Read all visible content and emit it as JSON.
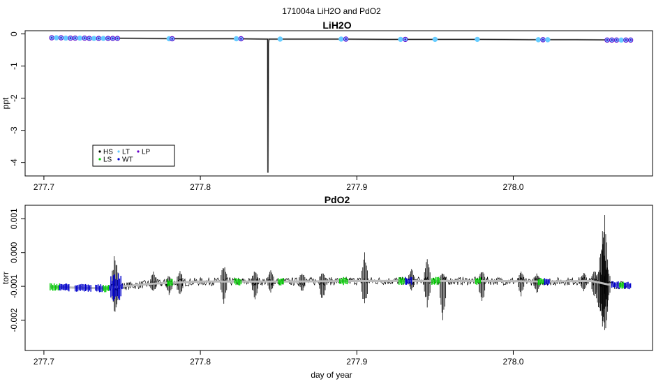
{
  "figure_title": "171004a   LiH2O and PdO2",
  "colors": {
    "HS": "#000000",
    "LS": "#00cc00",
    "LT": "#66ccff",
    "WT": "#0000cc",
    "LP": "#6600cc",
    "trace": "#000000",
    "smooth": "#bbbbbb"
  },
  "chart_data": [
    {
      "type": "line",
      "title": "LiH2O",
      "xlabel": "",
      "ylabel": "ppt",
      "xlim": [
        277.688,
        278.089
      ],
      "ylim": [
        -4.42,
        0.1
      ],
      "x_ticks": [
        "277.7",
        "277.8",
        "277.9",
        "278.0"
      ],
      "y_ticks": [
        "0",
        "-1",
        "-2",
        "-3",
        "-4"
      ],
      "series": [
        {
          "name": "trace",
          "x": [
            277.704,
            277.73,
            277.76,
            277.79,
            277.82,
            277.843,
            277.8432,
            277.8435,
            277.8438,
            277.86,
            277.89,
            277.92,
            277.95,
            277.98,
            278.01,
            278.04,
            278.075
          ],
          "y": [
            -0.12,
            -0.13,
            -0.14,
            -0.15,
            -0.15,
            -0.16,
            -4.32,
            -0.3,
            -0.16,
            -0.16,
            -0.16,
            -0.17,
            -0.17,
            -0.17,
            -0.18,
            -0.18,
            -0.19
          ]
        }
      ],
      "calibration_points": [
        {
          "x": 277.705,
          "y": -0.12,
          "type": "LP"
        },
        {
          "x": 277.708,
          "y": -0.12,
          "type": "LT"
        },
        {
          "x": 277.711,
          "y": -0.12,
          "type": "LP"
        },
        {
          "x": 277.714,
          "y": -0.13,
          "type": "LT"
        },
        {
          "x": 277.717,
          "y": -0.13,
          "type": "LP"
        },
        {
          "x": 277.72,
          "y": -0.13,
          "type": "LP"
        },
        {
          "x": 277.723,
          "y": -0.13,
          "type": "LT"
        },
        {
          "x": 277.726,
          "y": -0.13,
          "type": "LP"
        },
        {
          "x": 277.729,
          "y": -0.14,
          "type": "LP"
        },
        {
          "x": 277.732,
          "y": -0.14,
          "type": "LT"
        },
        {
          "x": 277.735,
          "y": -0.14,
          "type": "LP"
        },
        {
          "x": 277.738,
          "y": -0.14,
          "type": "LT"
        },
        {
          "x": 277.741,
          "y": -0.14,
          "type": "LP"
        },
        {
          "x": 277.744,
          "y": -0.14,
          "type": "LP"
        },
        {
          "x": 277.747,
          "y": -0.14,
          "type": "LP"
        },
        {
          "x": 277.78,
          "y": -0.15,
          "type": "LT"
        },
        {
          "x": 277.782,
          "y": -0.15,
          "type": "LP"
        },
        {
          "x": 277.823,
          "y": -0.15,
          "type": "LT"
        },
        {
          "x": 277.826,
          "y": -0.15,
          "type": "LP"
        },
        {
          "x": 277.851,
          "y": -0.16,
          "type": "LT"
        },
        {
          "x": 277.89,
          "y": -0.16,
          "type": "LT"
        },
        {
          "x": 277.893,
          "y": -0.16,
          "type": "LP"
        },
        {
          "x": 277.928,
          "y": -0.17,
          "type": "LT"
        },
        {
          "x": 277.931,
          "y": -0.17,
          "type": "LP"
        },
        {
          "x": 277.95,
          "y": -0.17,
          "type": "LT"
        },
        {
          "x": 277.977,
          "y": -0.17,
          "type": "LT"
        },
        {
          "x": 278.016,
          "y": -0.18,
          "type": "LT"
        },
        {
          "x": 278.019,
          "y": -0.18,
          "type": "LP"
        },
        {
          "x": 278.022,
          "y": -0.18,
          "type": "LT"
        },
        {
          "x": 278.06,
          "y": -0.19,
          "type": "LP"
        },
        {
          "x": 278.063,
          "y": -0.19,
          "type": "LP"
        },
        {
          "x": 278.066,
          "y": -0.19,
          "type": "LP"
        },
        {
          "x": 278.069,
          "y": -0.19,
          "type": "LT"
        },
        {
          "x": 278.072,
          "y": -0.19,
          "type": "LP"
        },
        {
          "x": 278.075,
          "y": -0.19,
          "type": "LP"
        }
      ],
      "legend": {
        "placement": "bottom-left",
        "entries": [
          "HS",
          "LS",
          "LT",
          "WT",
          "LP"
        ]
      }
    },
    {
      "type": "line",
      "title": "PdO2",
      "xlabel": "day of year",
      "ylabel": "torr",
      "xlim": [
        277.688,
        278.089
      ],
      "ylim": [
        -0.0029,
        0.0014
      ],
      "x_ticks": [
        "277.7",
        "277.8",
        "277.9",
        "278.0"
      ],
      "y_ticks": [
        "0.001",
        "0.000",
        "-0.001",
        "-0.002"
      ],
      "series": [
        {
          "name": "baseline",
          "x": [
            277.704,
            277.72,
            277.74,
            277.75,
            277.77,
            277.8,
            277.83,
            277.86,
            277.9,
            277.93,
            277.96,
            277.99,
            278.02,
            278.05,
            278.06,
            278.075
          ],
          "y": [
            -0.00102,
            -0.00104,
            -0.00106,
            -0.001,
            -0.00092,
            -0.00086,
            -0.00086,
            -0.00086,
            -0.00084,
            -0.00084,
            -0.00084,
            -0.00084,
            -0.00086,
            -0.00084,
            -0.00094,
            -0.00098
          ]
        }
      ],
      "spikes": [
        {
          "x": 277.7455,
          "ymin": -0.00198,
          "ymax": 0.0001
        },
        {
          "x": 277.77,
          "ymin": -0.0012,
          "ymax": -0.00052
        },
        {
          "x": 277.78,
          "ymin": -0.0013,
          "ymax": -0.00065
        },
        {
          "x": 277.787,
          "ymin": -0.00135,
          "ymax": -0.0005
        },
        {
          "x": 277.815,
          "ymin": -0.00155,
          "ymax": -0.00032
        },
        {
          "x": 277.835,
          "ymin": -0.00145,
          "ymax": -0.00048
        },
        {
          "x": 277.845,
          "ymin": -0.0012,
          "ymax": -0.0005
        },
        {
          "x": 277.865,
          "ymin": -0.0012,
          "ymax": -0.00055
        },
        {
          "x": 277.878,
          "ymin": -0.0015,
          "ymax": -0.00052
        },
        {
          "x": 277.905,
          "ymin": -0.00168,
          "ymax": 2e-05
        },
        {
          "x": 277.935,
          "ymin": -0.00115,
          "ymax": -0.00045
        },
        {
          "x": 277.945,
          "ymin": -0.00165,
          "ymax": -0.00015
        },
        {
          "x": 277.955,
          "ymin": -0.00205,
          "ymax": -0.00055
        },
        {
          "x": 277.98,
          "ymin": -0.00165,
          "ymax": -0.00048
        },
        {
          "x": 278.005,
          "ymin": -0.0013,
          "ymax": -0.00055
        },
        {
          "x": 278.015,
          "ymin": -0.00125,
          "ymax": -0.0006
        },
        {
          "x": 278.045,
          "ymin": -0.0012,
          "ymax": -0.00055
        },
        {
          "x": 278.052,
          "ymin": -0.0014,
          "ymax": -0.00045
        },
        {
          "x": 278.055,
          "ymin": -0.00195,
          "ymax": -0.00045
        },
        {
          "x": 278.057,
          "ymin": -0.00245,
          "ymax": 0.00075
        },
        {
          "x": 278.0585,
          "ymin": -0.00272,
          "ymax": 0.00128
        },
        {
          "x": 278.06,
          "ymin": -0.0016,
          "ymax": -0.00038
        }
      ],
      "calibration_segments": [
        {
          "x0": 277.704,
          "x1": 277.71,
          "type": "LS"
        },
        {
          "x0": 277.71,
          "x1": 277.716,
          "type": "WT"
        },
        {
          "x0": 277.72,
          "x1": 277.73,
          "type": "WT"
        },
        {
          "x0": 277.733,
          "x1": 277.738,
          "type": "WT"
        },
        {
          "x0": 277.738,
          "x1": 277.742,
          "type": "LS"
        },
        {
          "x0": 277.742,
          "x1": 277.75,
          "type": "WT"
        },
        {
          "x0": 277.779,
          "x1": 277.782,
          "type": "LS"
        },
        {
          "x0": 277.822,
          "x1": 277.826,
          "type": "LS"
        },
        {
          "x0": 277.85,
          "x1": 277.853,
          "type": "LS"
        },
        {
          "x0": 277.889,
          "x1": 277.894,
          "type": "LS"
        },
        {
          "x0": 277.927,
          "x1": 277.931,
          "type": "LS"
        },
        {
          "x0": 277.931,
          "x1": 277.935,
          "type": "WT"
        },
        {
          "x0": 277.948,
          "x1": 277.953,
          "type": "LS"
        },
        {
          "x0": 277.976,
          "x1": 277.979,
          "type": "LS"
        },
        {
          "x0": 278.016,
          "x1": 278.02,
          "type": "LS"
        },
        {
          "x0": 278.02,
          "x1": 278.023,
          "type": "WT"
        },
        {
          "x0": 278.063,
          "x1": 278.068,
          "type": "WT"
        },
        {
          "x0": 278.068,
          "x1": 278.071,
          "type": "LS"
        },
        {
          "x0": 278.071,
          "x1": 278.075,
          "type": "WT"
        }
      ]
    }
  ]
}
